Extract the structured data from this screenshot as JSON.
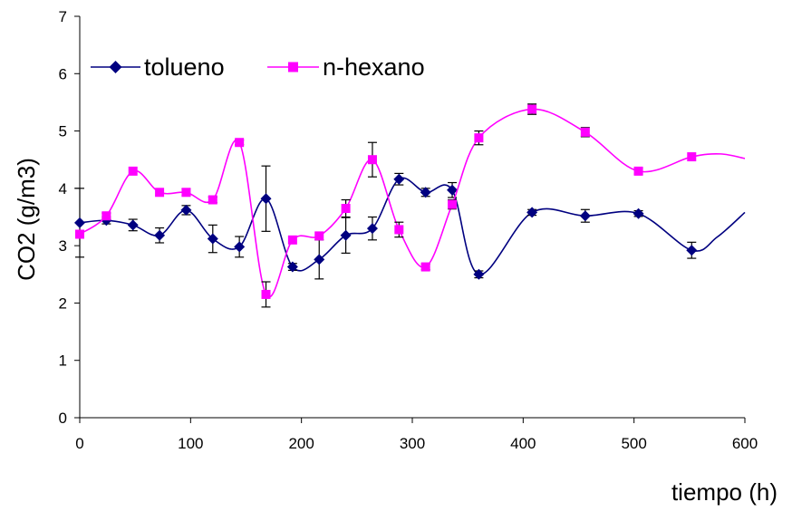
{
  "chart_data": {
    "type": "line",
    "xlabel": "tiempo (h)",
    "ylabel": "CO2  (g/m3)",
    "xlim": [
      0,
      600
    ],
    "ylim": [
      0,
      7
    ],
    "x_ticks": [
      "0",
      "100",
      "200",
      "300",
      "400",
      "500",
      "600"
    ],
    "y_ticks": [
      "0",
      "1",
      "2",
      "3",
      "4",
      "5",
      "6",
      "7"
    ],
    "grid": false,
    "legend_position": "top-left",
    "series": [
      {
        "name": "tolueno",
        "color": "#000080",
        "marker": "diamond",
        "points": [
          {
            "x": 0,
            "y": 3.4,
            "err": 0.6
          },
          {
            "x": 24,
            "y": 3.44,
            "err": 0.06
          },
          {
            "x": 48,
            "y": 3.36,
            "err": 0.1
          },
          {
            "x": 72,
            "y": 3.18,
            "err": 0.13
          },
          {
            "x": 96,
            "y": 3.62,
            "err": 0.08
          },
          {
            "x": 120,
            "y": 3.12,
            "err": 0.24
          },
          {
            "x": 144,
            "y": 2.98,
            "err": 0.18
          },
          {
            "x": 168,
            "y": 3.82,
            "err": 0.57
          },
          {
            "x": 192,
            "y": 2.63,
            "err": 0.06
          },
          {
            "x": 216,
            "y": 2.76,
            "err": 0.34
          },
          {
            "x": 240,
            "y": 3.18,
            "err": 0.31
          },
          {
            "x": 264,
            "y": 3.3,
            "err": 0.2
          },
          {
            "x": 288,
            "y": 4.16,
            "err": 0.1
          },
          {
            "x": 312,
            "y": 3.93,
            "err": 0.07
          },
          {
            "x": 336,
            "y": 3.97,
            "err": 0.13
          },
          {
            "x": 360,
            "y": 2.5,
            "err": 0.06
          },
          {
            "x": 408,
            "y": 3.58,
            "err": 0.05
          },
          {
            "x": 456,
            "y": 3.52,
            "err": 0.11
          },
          {
            "x": 504,
            "y": 3.56,
            "err": 0.05
          },
          {
            "x": 552,
            "y": 2.92,
            "err": 0.14
          }
        ],
        "curve_tail": [
          [
            575,
            3.15
          ],
          [
            600,
            3.58
          ]
        ]
      },
      {
        "name": "n-hexano",
        "color": "#ff00ff",
        "marker": "square",
        "points": [
          {
            "x": 0,
            "y": 3.2,
            "err": 0
          },
          {
            "x": 24,
            "y": 3.52,
            "err": 0.05
          },
          {
            "x": 48,
            "y": 4.3,
            "err": 0
          },
          {
            "x": 72,
            "y": 3.93,
            "err": 0
          },
          {
            "x": 96,
            "y": 3.93,
            "err": 0.06
          },
          {
            "x": 120,
            "y": 3.8,
            "err": 0.05
          },
          {
            "x": 144,
            "y": 4.8,
            "err": 0.04
          },
          {
            "x": 168,
            "y": 2.15,
            "err": 0.22
          },
          {
            "x": 192,
            "y": 3.1,
            "err": 0
          },
          {
            "x": 216,
            "y": 3.17,
            "err": 0
          },
          {
            "x": 240,
            "y": 3.65,
            "err": 0.15
          },
          {
            "x": 264,
            "y": 4.5,
            "err": 0.3
          },
          {
            "x": 288,
            "y": 3.28,
            "err": 0.13
          },
          {
            "x": 312,
            "y": 2.63,
            "err": 0.05
          },
          {
            "x": 336,
            "y": 3.72,
            "err": 0.08
          },
          {
            "x": 360,
            "y": 4.88,
            "err": 0.12
          },
          {
            "x": 408,
            "y": 5.38,
            "err": 0.09
          },
          {
            "x": 456,
            "y": 4.98,
            "err": 0.08
          },
          {
            "x": 504,
            "y": 4.3,
            "err": 0.05
          },
          {
            "x": 552,
            "y": 4.55,
            "err": 0
          }
        ],
        "curve_tail": [
          [
            578,
            4.6
          ],
          [
            600,
            4.52
          ]
        ]
      }
    ]
  }
}
